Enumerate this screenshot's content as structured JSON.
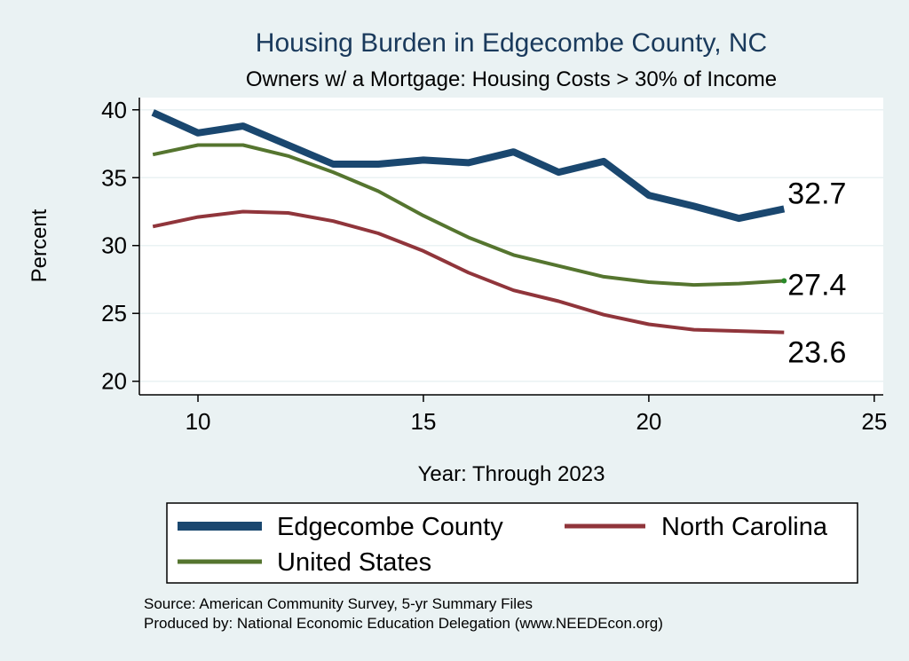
{
  "chart_data": {
    "type": "line",
    "title": "Housing Burden in Edgecombe County, NC",
    "subtitle": "Owners w/ a Mortgage: Housing Costs > 30% of Income",
    "xlabel": "Year: Through 2023",
    "ylabel": "Percent",
    "xlim": [
      8.7,
      25.2
    ],
    "ylim": [
      19.0,
      40.9
    ],
    "xticks": [
      10,
      15,
      20,
      25
    ],
    "yticks": [
      20,
      25,
      30,
      35,
      40
    ],
    "grid": true,
    "legend_position": "bottom",
    "x": [
      9,
      10,
      11,
      12,
      13,
      14,
      15,
      16,
      17,
      18,
      19,
      20,
      21,
      22,
      23
    ],
    "series": [
      {
        "name": "Edgecombe County",
        "color": "#1a476f",
        "values": [
          39.8,
          38.3,
          38.8,
          37.4,
          36.0,
          36.0,
          36.3,
          36.1,
          36.9,
          35.4,
          36.2,
          33.7,
          32.9,
          32.0,
          32.7
        ],
        "end_label": "32.7"
      },
      {
        "name": "North Carolina",
        "color": "#90353b",
        "values": [
          31.4,
          32.1,
          32.5,
          32.4,
          31.8,
          30.9,
          29.6,
          28.0,
          26.7,
          25.9,
          24.9,
          24.2,
          23.8,
          23.7,
          23.6
        ],
        "end_label": "23.6"
      },
      {
        "name": "United States",
        "color": "#55752f",
        "values": [
          36.7,
          37.4,
          37.4,
          36.6,
          35.4,
          34.0,
          32.2,
          30.6,
          29.3,
          28.5,
          27.7,
          27.3,
          27.1,
          27.2,
          27.4
        ],
        "end_label": "27.4"
      }
    ]
  },
  "notes": {
    "source": "Source: American Community Survey, 5-yr Summary Files",
    "produced_by": "Produced by: National Economic Education Delegation (www.NEEDEcon.org)"
  }
}
